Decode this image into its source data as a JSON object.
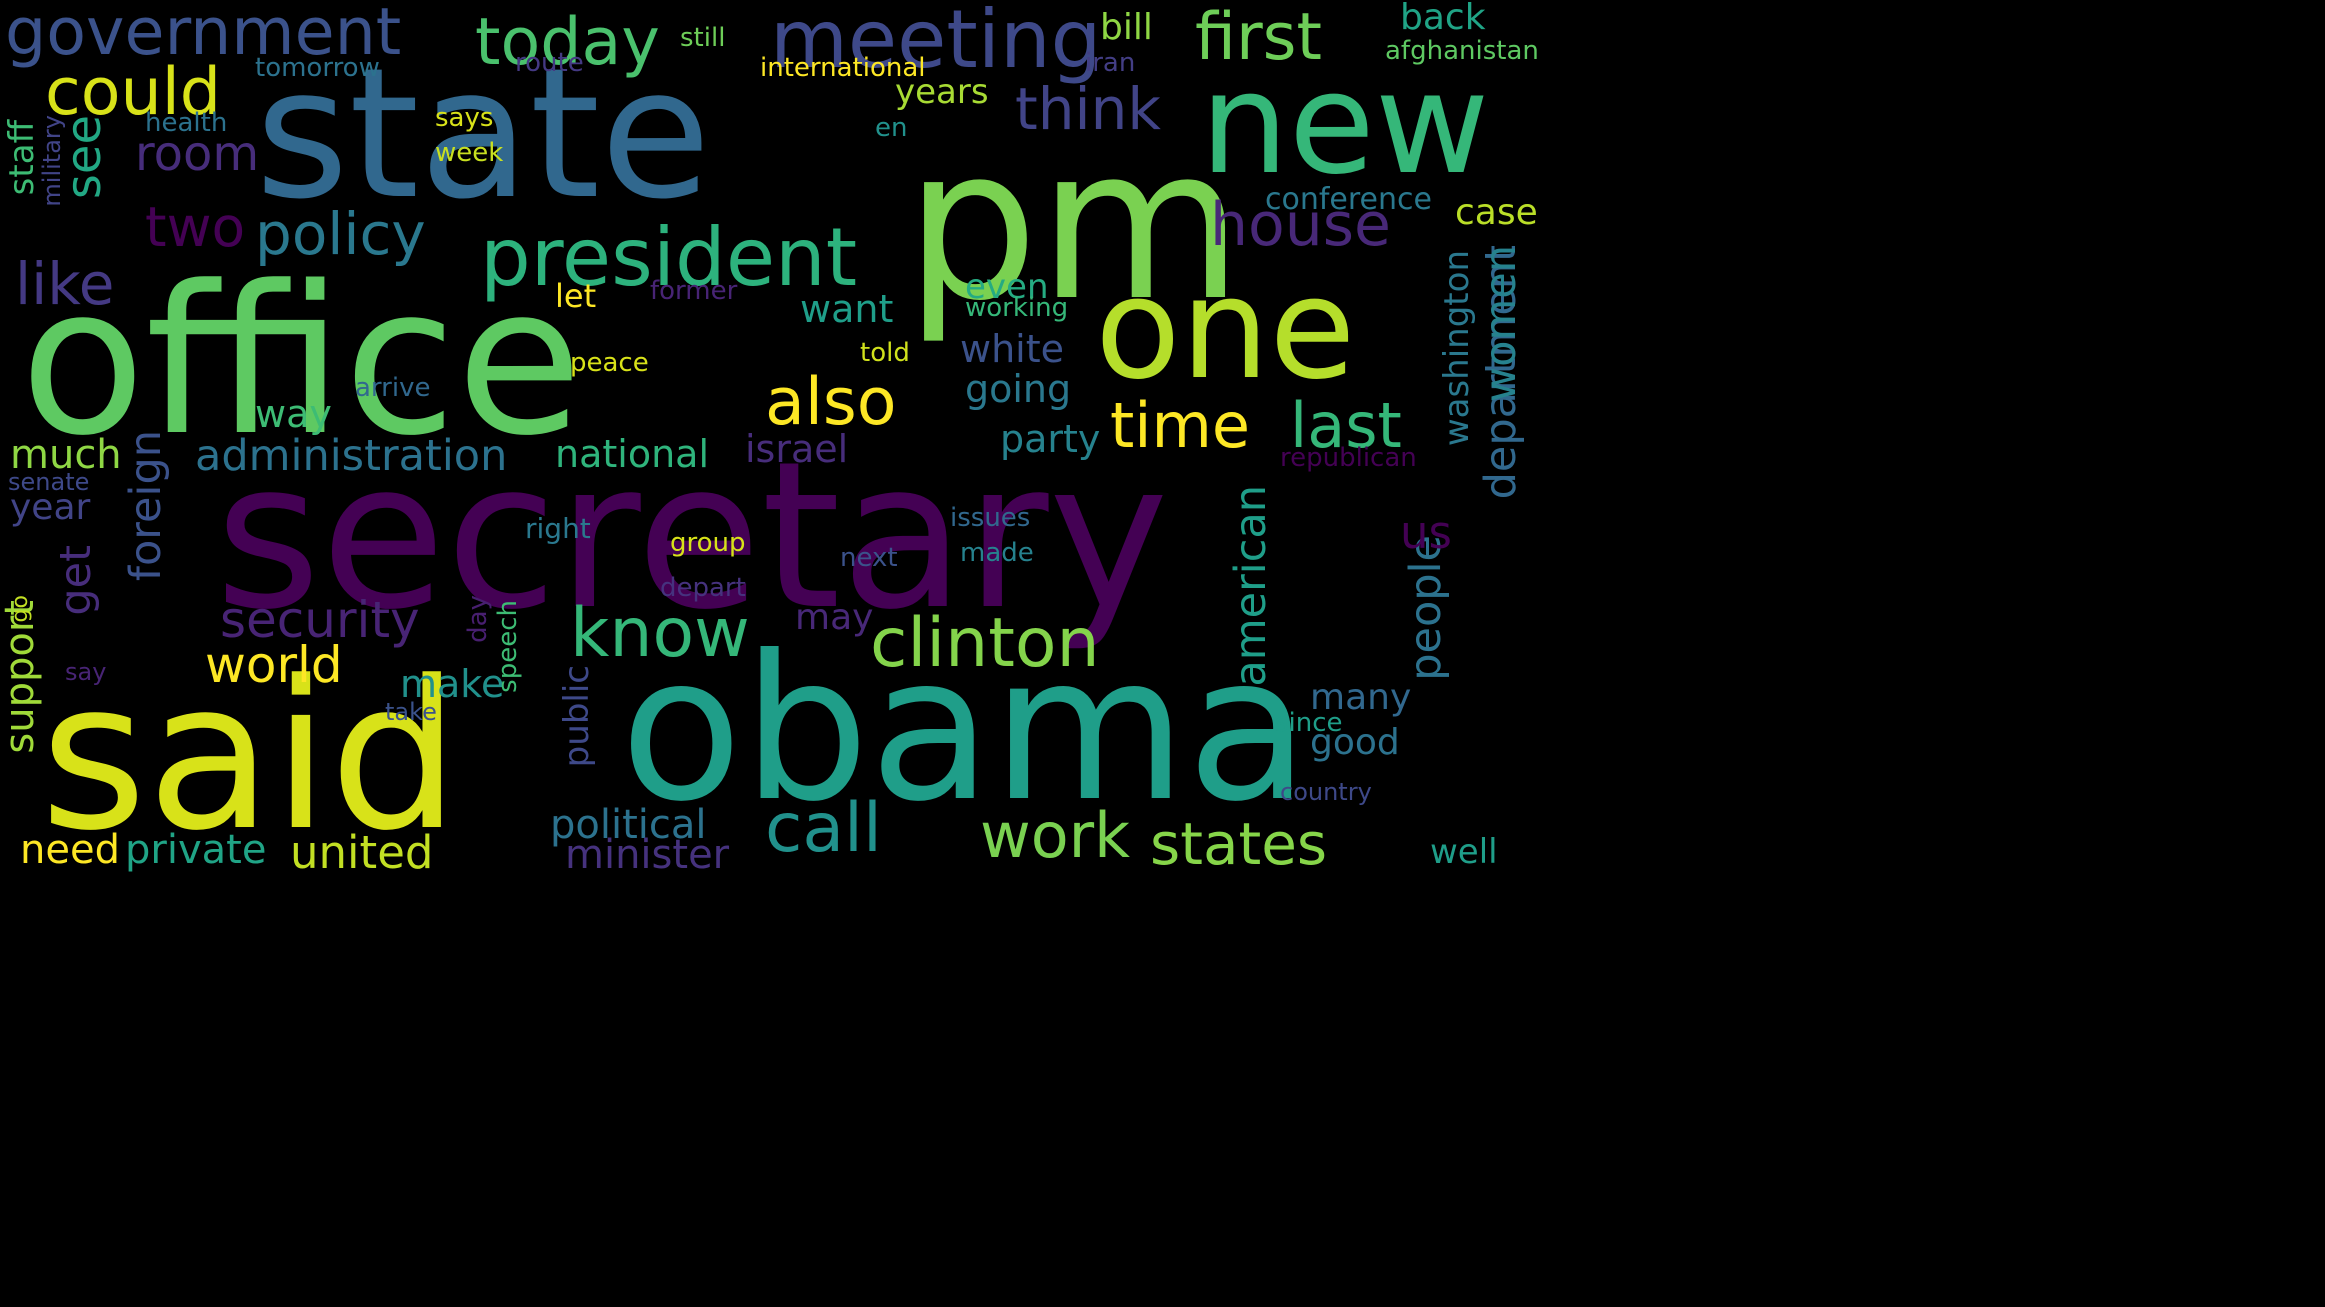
{
  "words": [
    {
      "text": "secretary",
      "color": "#440154",
      "orient": "h"
    },
    {
      "text": "state",
      "color": "#31688e",
      "orient": "h"
    },
    {
      "text": "office",
      "color": "#5ec962",
      "orient": "h"
    },
    {
      "text": "pm",
      "color": "#7ad151",
      "orient": "h"
    },
    {
      "text": "obama",
      "color": "#1f9e89",
      "orient": "h"
    },
    {
      "text": "said",
      "color": "#d8e219",
      "orient": "h"
    },
    {
      "text": "new",
      "color": "#35b779",
      "orient": "h"
    },
    {
      "text": "one",
      "color": "#b5de2b",
      "orient": "h"
    },
    {
      "text": "president",
      "color": "#2db27d",
      "orient": "h"
    },
    {
      "text": "meeting",
      "color": "#3e4989",
      "orient": "h"
    },
    {
      "text": "government",
      "color": "#3b528b",
      "orient": "h"
    },
    {
      "text": "today",
      "color": "#4ac16d",
      "orient": "h"
    },
    {
      "text": "first",
      "color": "#6ece58",
      "orient": "h"
    },
    {
      "text": "could",
      "color": "#d8e219",
      "orient": "h"
    },
    {
      "text": "also",
      "color": "#fde725",
      "orient": "h"
    },
    {
      "text": "time",
      "color": "#fde725",
      "orient": "h"
    },
    {
      "text": "last",
      "color": "#35b779",
      "orient": "h"
    },
    {
      "text": "clinton",
      "color": "#84d44b",
      "orient": "h"
    },
    {
      "text": "know",
      "color": "#35b779",
      "orient": "h"
    },
    {
      "text": "call",
      "color": "#21918c",
      "orient": "h"
    },
    {
      "text": "work",
      "color": "#7ad151",
      "orient": "h"
    },
    {
      "text": "states",
      "color": "#86d549",
      "orient": "h"
    },
    {
      "text": "house",
      "color": "#482878",
      "orient": "h"
    },
    {
      "text": "think",
      "color": "#414487",
      "orient": "h"
    },
    {
      "text": "policy",
      "color": "#2a788e",
      "orient": "h"
    },
    {
      "text": "two",
      "color": "#440154",
      "orient": "h"
    },
    {
      "text": "like",
      "color": "#443983",
      "orient": "h"
    },
    {
      "text": "room",
      "color": "#472d7b",
      "orient": "h"
    },
    {
      "text": "see",
      "color": "#22a884",
      "orient": "v"
    },
    {
      "text": "security",
      "color": "#482475",
      "orient": "h"
    },
    {
      "text": "world",
      "color": "#fde725",
      "orient": "h"
    },
    {
      "text": "administration",
      "color": "#2c728e",
      "orient": "h"
    },
    {
      "text": "foreign",
      "color": "#3b528b",
      "orient": "v"
    },
    {
      "text": "get",
      "color": "#472d7b",
      "orient": "v"
    },
    {
      "text": "american",
      "color": "#1f9e89",
      "orient": "v"
    },
    {
      "text": "people",
      "color": "#2c728e",
      "orient": "v"
    },
    {
      "text": "department",
      "color": "#31688e",
      "orient": "v"
    },
    {
      "text": "women",
      "color": "#26828e",
      "orient": "v"
    },
    {
      "text": "us",
      "color": "#440154",
      "orient": "h"
    },
    {
      "text": "united",
      "color": "#c2df23",
      "orient": "h"
    },
    {
      "text": "political",
      "color": "#2c728e",
      "orient": "h"
    },
    {
      "text": "minister",
      "color": "#46327e",
      "orient": "h"
    },
    {
      "text": "private",
      "color": "#20a486",
      "orient": "h"
    },
    {
      "text": "need",
      "color": "#fde725",
      "orient": "h"
    },
    {
      "text": "support",
      "color": "#a0da39",
      "orient": "v"
    },
    {
      "text": "much",
      "color": "#8fd744",
      "orient": "h"
    },
    {
      "text": "year",
      "color": "#414487",
      "orient": "h"
    },
    {
      "text": "senate",
      "color": "#3e4989",
      "orient": "h"
    },
    {
      "text": "national",
      "color": "#2fb47c",
      "orient": "h"
    },
    {
      "text": "israel",
      "color": "#472d7b",
      "orient": "h"
    },
    {
      "text": "party",
      "color": "#26828e",
      "orient": "h"
    },
    {
      "text": "white",
      "color": "#3b528b",
      "orient": "h"
    },
    {
      "text": "going",
      "color": "#2a788e",
      "orient": "h"
    },
    {
      "text": "even",
      "color": "#25ab82",
      "orient": "h"
    },
    {
      "text": "want",
      "color": "#1f9e89",
      "orient": "h"
    },
    {
      "text": "way",
      "color": "#3dbc74",
      "orient": "h"
    },
    {
      "text": "make",
      "color": "#21918c",
      "orient": "h"
    },
    {
      "text": "may",
      "color": "#482878",
      "orient": "h"
    },
    {
      "text": "many",
      "color": "#31688e",
      "orient": "h"
    },
    {
      "text": "good",
      "color": "#2c728e",
      "orient": "h"
    },
    {
      "text": "well",
      "color": "#1f9e89",
      "orient": "h"
    },
    {
      "text": "years",
      "color": "#a8db34",
      "orient": "h"
    },
    {
      "text": "bill",
      "color": "#8fd744",
      "orient": "h"
    },
    {
      "text": "back",
      "color": "#20a486",
      "orient": "h"
    },
    {
      "text": "case",
      "color": "#bade28",
      "orient": "h"
    },
    {
      "text": "washington",
      "color": "#2a788e",
      "orient": "v"
    },
    {
      "text": "public",
      "color": "#3e4989",
      "orient": "v"
    },
    {
      "text": "let",
      "color": "#fde725",
      "orient": "h"
    },
    {
      "text": "told",
      "color": "#d0e11c",
      "orient": "h"
    },
    {
      "text": "peace",
      "color": "#d8e219",
      "orient": "h"
    },
    {
      "text": "arrive",
      "color": "#31688e",
      "orient": "h"
    },
    {
      "text": "former",
      "color": "#482475",
      "orient": "h"
    },
    {
      "text": "working",
      "color": "#35b779",
      "orient": "h"
    },
    {
      "text": "conference",
      "color": "#2a788e",
      "orient": "h"
    },
    {
      "text": "republican",
      "color": "#440154",
      "orient": "h"
    },
    {
      "text": "country",
      "color": "#3e4989",
      "orient": "h"
    },
    {
      "text": "since",
      "color": "#1f9e89",
      "orient": "h"
    },
    {
      "text": "still",
      "color": "#6ece58",
      "orient": "h"
    },
    {
      "text": "tomorrow",
      "color": "#2c728e",
      "orient": "h"
    },
    {
      "text": "route",
      "color": "#443983",
      "orient": "h"
    },
    {
      "text": "international",
      "color": "#fde725",
      "orient": "h"
    },
    {
      "text": "iran",
      "color": "#433e85",
      "orient": "h"
    },
    {
      "text": "afghanistan",
      "color": "#5ec962",
      "orient": "h"
    },
    {
      "text": "health",
      "color": "#2c728e",
      "orient": "h"
    },
    {
      "text": "says",
      "color": "#d8e219",
      "orient": "h"
    },
    {
      "text": "week",
      "color": "#c8e020",
      "orient": "h"
    },
    {
      "text": "en",
      "color": "#21918c",
      "orient": "h"
    },
    {
      "text": "staff",
      "color": "#3dbc74",
      "orient": "v"
    },
    {
      "text": "military",
      "color": "#414487",
      "orient": "v"
    },
    {
      "text": "right",
      "color": "#2a788e",
      "orient": "h"
    },
    {
      "text": "group",
      "color": "#d8e219",
      "orient": "h"
    },
    {
      "text": "next",
      "color": "#3b528b",
      "orient": "h"
    },
    {
      "text": "issues",
      "color": "#31688e",
      "orient": "h"
    },
    {
      "text": "made",
      "color": "#26828e",
      "orient": "h"
    },
    {
      "text": "depart",
      "color": "#46327e",
      "orient": "h"
    },
    {
      "text": "day",
      "color": "#481f70",
      "orient": "v"
    },
    {
      "text": "speech",
      "color": "#3dbc74",
      "orient": "v"
    },
    {
      "text": "take",
      "color": "#3b528b",
      "orient": "h"
    },
    {
      "text": "say",
      "color": "#482475",
      "orient": "h"
    },
    {
      "text": "go",
      "color": "#c2df23",
      "orient": "v"
    }
  ]
}
